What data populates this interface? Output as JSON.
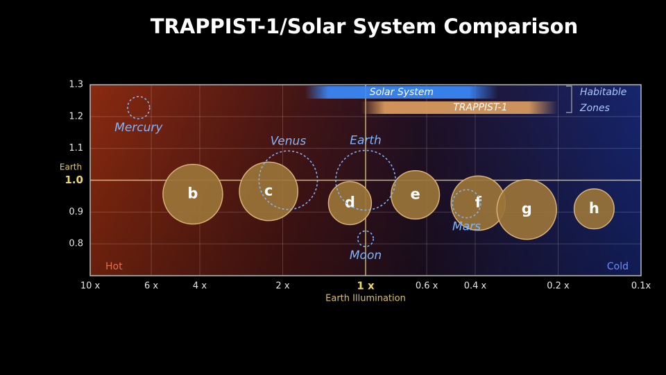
{
  "chart_data": {
    "type": "bubble",
    "title": "TRAPPIST-1/Solar System Comparison",
    "xlabel": "Earth Illumination",
    "x_scale": "log",
    "xlim": [
      10,
      0.1
    ],
    "xticks": [
      {
        "value": 10,
        "label": "10 x"
      },
      {
        "value": 6,
        "label": "6 x"
      },
      {
        "value": 4,
        "label": "4 x"
      },
      {
        "value": 2,
        "label": "2 x"
      },
      {
        "value": 1,
        "label": "1 x"
      },
      {
        "value": 0.6,
        "label": "0.6 x"
      },
      {
        "value": 0.4,
        "label": "0.4 x"
      },
      {
        "value": 0.2,
        "label": "0.2 x"
      },
      {
        "value": 0.1,
        "label": "0.1x"
      }
    ],
    "ylim": [
      0.7,
      1.3
    ],
    "yticks": [
      0.8,
      0.9,
      {
        "value": 1,
        "label": "1.0"
      },
      1.1,
      1.2,
      1.3
    ],
    "reference_label": "Earth",
    "hot_label": "Hot",
    "cold_label": "Cold",
    "grid": true,
    "series": [
      {
        "name": "TRAPPIST-1",
        "color": "#9a7438",
        "labels": [
          "b",
          "c",
          "d",
          "e",
          "f",
          "g",
          "h"
        ],
        "x": [
          4.24,
          2.25,
          1.14,
          0.66,
          0.39,
          0.26,
          0.148
        ],
        "values": [
          0.956,
          0.965,
          0.928,
          0.954,
          0.928,
          0.908,
          0.91
        ],
        "sizes": [
          1.0,
          0.98,
          0.72,
          0.81,
          0.91,
          1.0,
          0.67
        ]
      },
      {
        "name": "Solar System",
        "color": "#7fb6ff",
        "labels": [
          "Mercury",
          "Venus",
          "Earth",
          "Mars",
          "Moon"
        ],
        "x": [
          6.67,
          1.91,
          1,
          0.43,
          1
        ],
        "values": [
          1.228,
          1.0,
          1.0,
          0.926,
          0.816
        ],
        "sizes": [
          0.37,
          0.98,
          1.0,
          0.47,
          0.26
        ]
      }
    ],
    "zones_label": [
      "Habitable",
      "Zones"
    ],
    "zones": [
      {
        "name": "Solar System",
        "from": 1.66,
        "to": 0.33,
        "color": "#3a8cff"
      },
      {
        "name": "TRAPPIST-1",
        "from": 1.04,
        "to": 0.2,
        "color": "#e0a060"
      }
    ]
  }
}
